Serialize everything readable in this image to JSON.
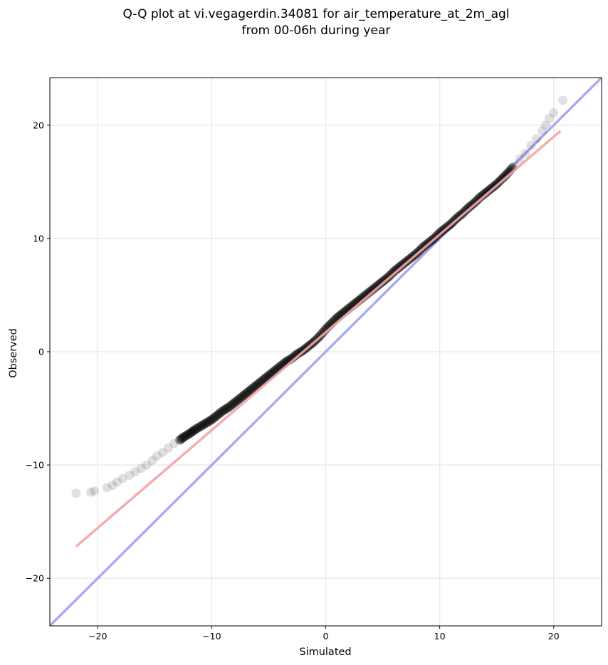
{
  "chart_data": {
    "type": "scatter",
    "title": "Q-Q plot at vi.vegagerdin.34081 for air_temperature_at_2m_agl",
    "subtitle": "from 00-06h during year",
    "xlabel": "Simulated",
    "ylabel": "Observed",
    "xlim": [
      -24.2,
      24.2
    ],
    "ylim": [
      -24.2,
      24.2
    ],
    "xticks": [
      -20,
      -10,
      0,
      10,
      20
    ],
    "yticks": [
      -20,
      -10,
      0,
      10,
      20
    ],
    "xtick_labels": [
      "−20",
      "−10",
      "0",
      "10",
      "20"
    ],
    "ytick_labels": [
      "−20",
      "−10",
      "0",
      "10",
      "20"
    ],
    "grid": true,
    "colors": {
      "points": "#000000",
      "fit_line": "#f4a4a4",
      "identity_line": "#aaaaf4",
      "grid": "#ebebeb"
    },
    "quantile_points": {
      "x": [
        -21.9,
        -20.6,
        -20.3,
        -19.2,
        -18.7,
        -18.3,
        -17.8,
        -17.2,
        -16.7,
        -16.2,
        -15.7,
        -15.2,
        -14.8,
        -14.3,
        -13.8,
        -13.3,
        -12.8,
        -12.4,
        -11.9,
        -11.5,
        -11.0,
        -10.5,
        -10.0,
        -9.5,
        -9.0,
        -8.5,
        -8.0,
        -7.5,
        -7.0,
        -6.5,
        -6.0,
        -5.5,
        -5.0,
        -4.5,
        -4.0,
        -3.5,
        -3.0,
        -2.5,
        -2.0,
        -1.5,
        -1.0,
        -0.5,
        0.0,
        0.5,
        1.0,
        1.5,
        2.0,
        2.5,
        3.0,
        3.5,
        4.0,
        4.5,
        5.0,
        5.5,
        6.0,
        6.5,
        7.0,
        7.5,
        8.0,
        8.5,
        9.0,
        9.5,
        10.0,
        10.5,
        11.0,
        11.5,
        12.0,
        12.5,
        13.0,
        13.5,
        14.0,
        14.5,
        15.0,
        15.5,
        16.0,
        16.5,
        17.0,
        17.5,
        18.0,
        18.5,
        19.0,
        19.3,
        19.6,
        20.0,
        20.8
      ],
      "y": [
        -12.5,
        -12.4,
        -12.3,
        -12.0,
        -11.8,
        -11.5,
        -11.2,
        -10.9,
        -10.6,
        -10.3,
        -10.0,
        -9.6,
        -9.2,
        -8.9,
        -8.5,
        -8.1,
        -7.8,
        -7.5,
        -7.2,
        -6.9,
        -6.6,
        -6.3,
        -6.0,
        -5.6,
        -5.2,
        -4.9,
        -4.5,
        -4.1,
        -3.7,
        -3.3,
        -2.9,
        -2.5,
        -2.1,
        -1.7,
        -1.3,
        -0.9,
        -0.6,
        -0.2,
        0.1,
        0.5,
        0.9,
        1.4,
        2.0,
        2.5,
        3.0,
        3.4,
        3.8,
        4.2,
        4.6,
        5.0,
        5.4,
        5.8,
        6.2,
        6.6,
        7.1,
        7.5,
        7.9,
        8.3,
        8.7,
        9.2,
        9.6,
        10.0,
        10.5,
        10.9,
        11.3,
        11.8,
        12.2,
        12.7,
        13.1,
        13.6,
        14.0,
        14.4,
        14.8,
        15.3,
        15.8,
        16.4,
        17.0,
        17.5,
        18.2,
        18.8,
        19.5,
        20.0,
        20.6,
        21.1,
        22.2
      ]
    },
    "fit_line": {
      "x": [
        -21.9,
        20.6
      ],
      "y": [
        -17.2,
        19.5
      ]
    },
    "identity_line": {
      "x": [
        -24.2,
        24.2
      ],
      "y": [
        -24.2,
        24.2
      ]
    }
  }
}
